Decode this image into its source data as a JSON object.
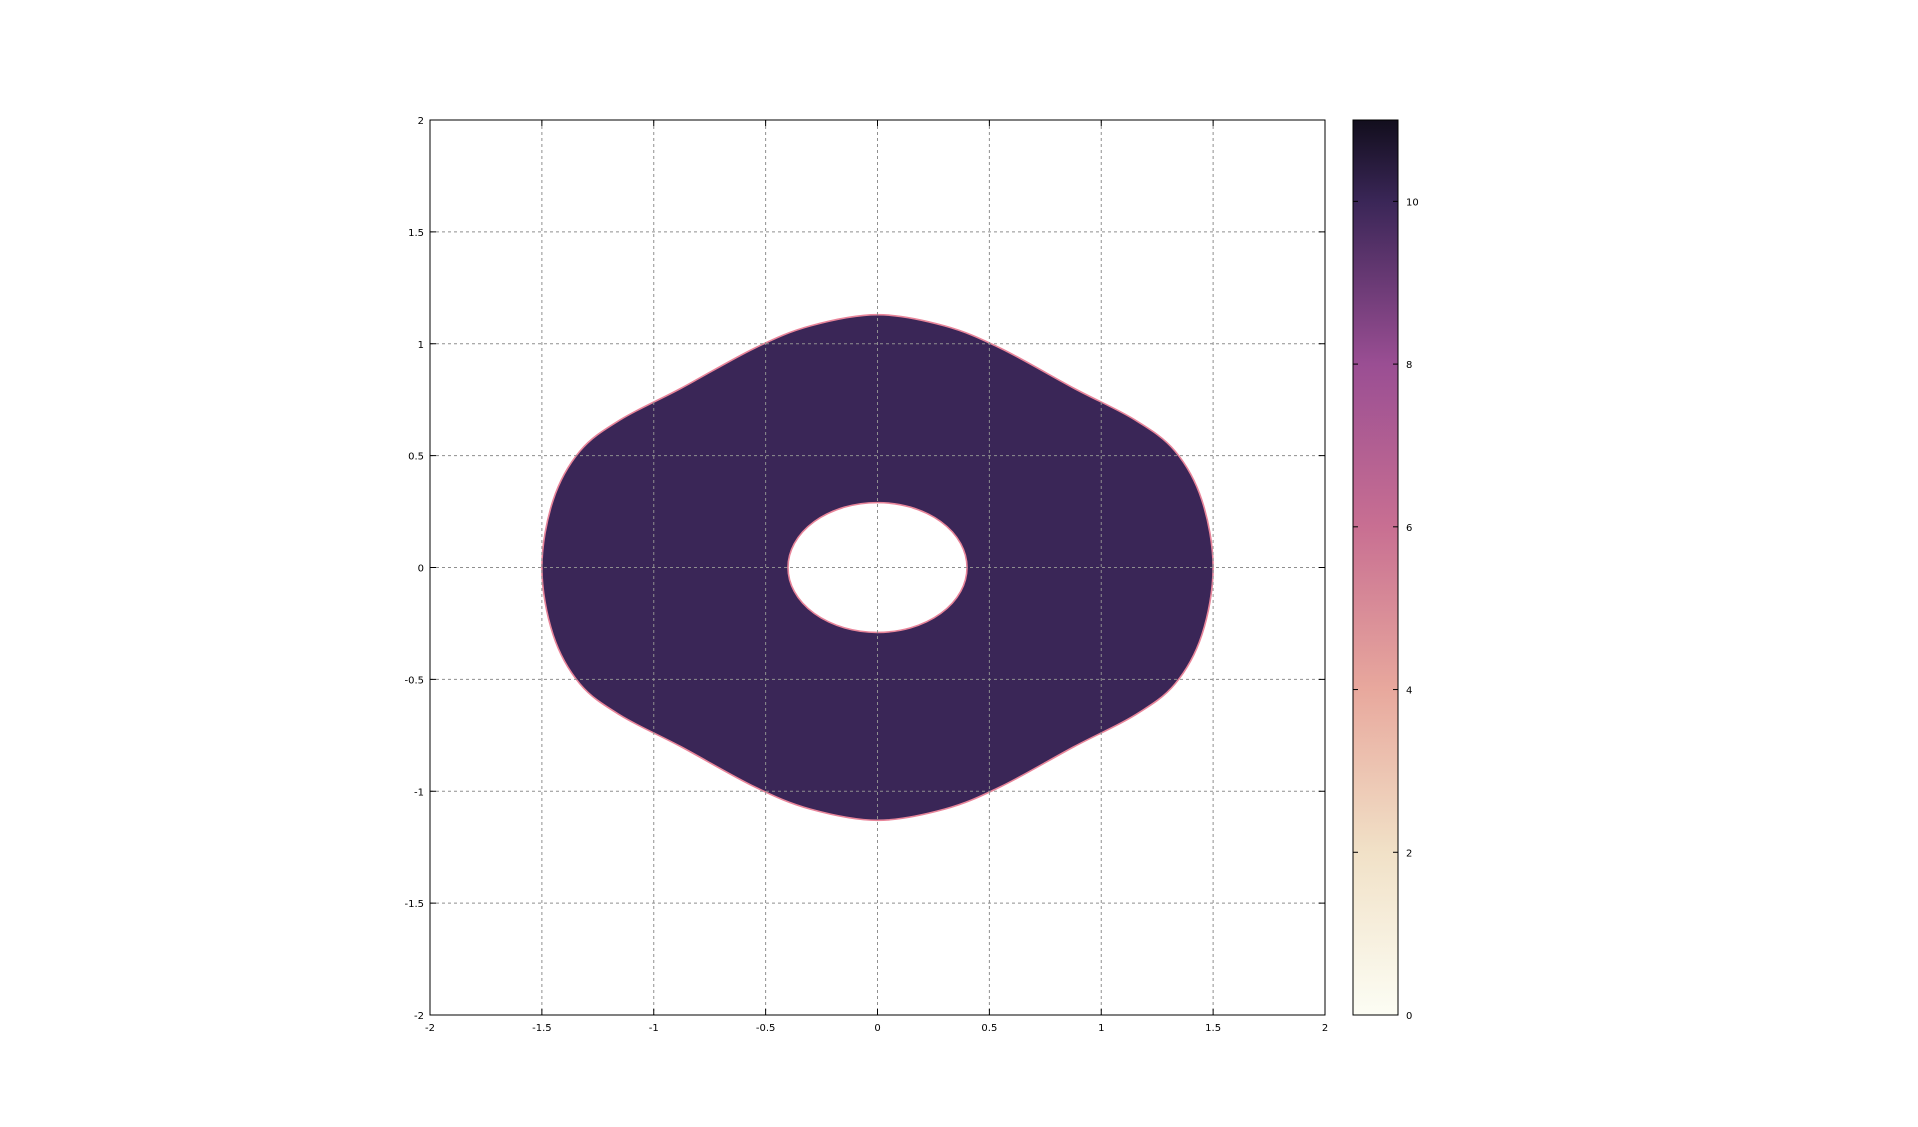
{
  "chart_data": {
    "type": "heatmap",
    "title": "",
    "xlabel": "",
    "ylabel": "",
    "xlim": [
      -2,
      2
    ],
    "ylim": [
      -2,
      2
    ],
    "grid": true,
    "x_ticks": [
      "-2",
      "-1.5",
      "-1",
      "-0.5",
      "0",
      "0.5",
      "1",
      "1.5",
      "2"
    ],
    "y_ticks": [
      "-2",
      "-1.5",
      "-1",
      "-0.5",
      "0",
      "0.5",
      "1",
      "1.5",
      "2"
    ],
    "x_tick_values": [
      -2,
      -1.5,
      -1,
      -0.5,
      0,
      0.5,
      1,
      1.5,
      2
    ],
    "y_tick_values": [
      -2,
      -1.5,
      -1,
      -0.5,
      0,
      0.5,
      1,
      1.5,
      2
    ],
    "region": {
      "fill_value": 9.6,
      "fill_color": "#3a2657",
      "edge_color": "#e8859a",
      "outer_boundary": [
        [
          1.5,
          0
        ],
        [
          1.45,
          0.3
        ],
        [
          1.33,
          0.52
        ],
        [
          1.15,
          0.66
        ],
        [
          0.88,
          0.8
        ],
        [
          0.55,
          0.98
        ],
        [
          0.3,
          1.08
        ],
        [
          0,
          1.13
        ],
        [
          -0.3,
          1.08
        ],
        [
          -0.55,
          0.98
        ],
        [
          -0.88,
          0.8
        ],
        [
          -1.15,
          0.66
        ],
        [
          -1.33,
          0.52
        ],
        [
          -1.45,
          0.3
        ],
        [
          -1.5,
          0
        ],
        [
          -1.45,
          -0.3
        ],
        [
          -1.33,
          -0.52
        ],
        [
          -1.15,
          -0.66
        ],
        [
          -0.88,
          -0.8
        ],
        [
          -0.55,
          -0.98
        ],
        [
          -0.3,
          -1.08
        ],
        [
          0,
          -1.13
        ],
        [
          0.3,
          -1.08
        ],
        [
          0.55,
          -0.98
        ],
        [
          0.88,
          -0.8
        ],
        [
          1.15,
          -0.66
        ],
        [
          1.33,
          -0.52
        ],
        [
          1.45,
          -0.3
        ]
      ],
      "hole": {
        "center": [
          0,
          0
        ],
        "rx": 0.4,
        "ry": 0.29
      }
    },
    "colorbar": {
      "range": [
        0,
        11
      ],
      "ticks": [
        "0",
        "2",
        "4",
        "6",
        "8",
        "10"
      ],
      "tick_values": [
        0,
        2,
        4,
        6,
        8,
        10
      ],
      "gradient": [
        {
          "v": 0,
          "color": "#fcfdf4"
        },
        {
          "v": 2,
          "color": "#f1e1c7"
        },
        {
          "v": 4,
          "color": "#e8a89d"
        },
        {
          "v": 6,
          "color": "#c86f92"
        },
        {
          "v": 8,
          "color": "#9a4e93"
        },
        {
          "v": 10,
          "color": "#3a2657"
        },
        {
          "v": 11,
          "color": "#120e1d"
        }
      ],
      "placement": "right"
    }
  }
}
